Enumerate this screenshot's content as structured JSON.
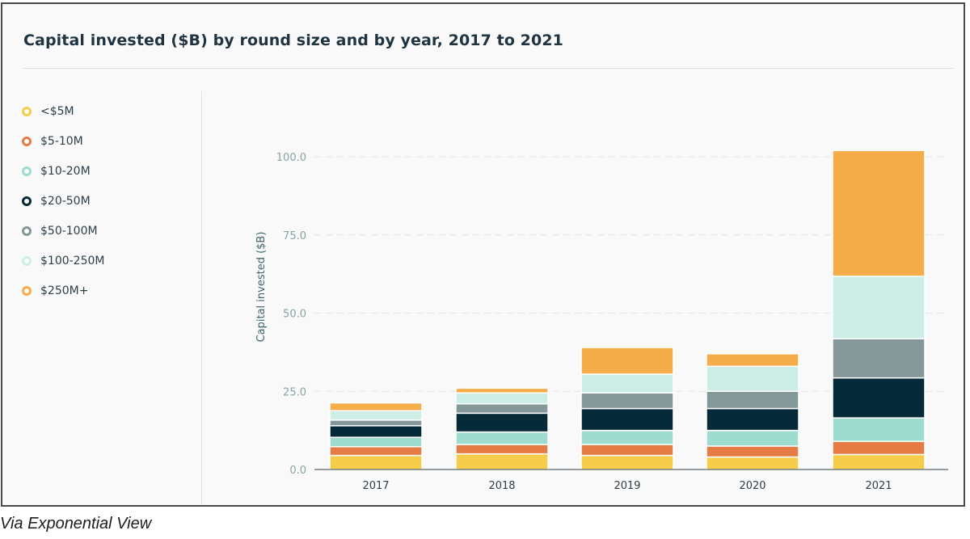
{
  "chart_data": {
    "type": "bar",
    "stacked": true,
    "title": "Capital invested ($B) by round size and by year, 2017 to 2021",
    "ylabel": "Capital invested ($B)",
    "xlabel": "",
    "categories": [
      "2017",
      "2018",
      "2019",
      "2020",
      "2021"
    ],
    "ylim": [
      0,
      105
    ],
    "yticks": [
      0,
      25,
      50,
      75,
      100
    ],
    "ytick_labels": [
      "0.0",
      "25.0",
      "50.0",
      "75.0",
      "100.0"
    ],
    "grid": true,
    "legend_position": "left",
    "series": [
      {
        "name": "<$5M",
        "color": "#f5cd4b",
        "values": [
          4.5,
          5.0,
          4.5,
          4.0,
          4.8
        ]
      },
      {
        "name": "$5-10M",
        "color": "#e67c45",
        "values": [
          2.8,
          3.0,
          3.5,
          3.5,
          4.2
        ]
      },
      {
        "name": "$10-20M",
        "color": "#9edcd0",
        "values": [
          3.0,
          4.0,
          4.5,
          5.0,
          7.5
        ]
      },
      {
        "name": "$20-50M",
        "color": "#062a38",
        "values": [
          3.7,
          6.0,
          7.0,
          7.0,
          12.8
        ]
      },
      {
        "name": "$50-100M",
        "color": "#849799",
        "values": [
          1.8,
          3.0,
          5.0,
          5.5,
          12.5
        ]
      },
      {
        "name": "$100-250M",
        "color": "#cdeee7",
        "values": [
          3.0,
          3.5,
          6.0,
          8.0,
          20.0
        ]
      },
      {
        "name": "$250M+",
        "color": "#f5ad49",
        "values": [
          2.5,
          1.5,
          8.5,
          4.0,
          40.2
        ]
      }
    ]
  },
  "caption": "Via Exponential View"
}
